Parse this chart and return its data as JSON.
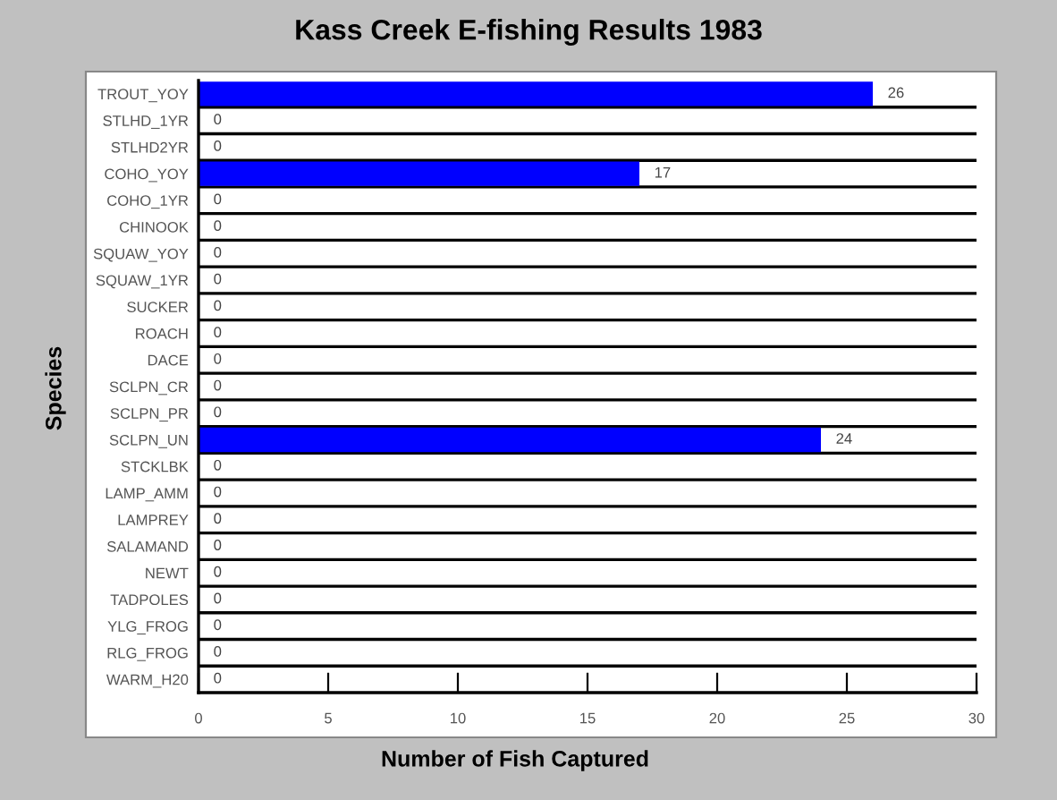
{
  "chart_data": {
    "type": "bar",
    "orientation": "horizontal",
    "title": "Kass Creek E-fishing Results 1983",
    "xlabel": "Number of Fish Captured",
    "ylabel": "Species",
    "categories": [
      "TROUT_YOY",
      "STLHD_1YR",
      "STLHD2YR",
      "COHO_YOY",
      "COHO_1YR",
      "CHINOOK",
      "SQUAW_YOY",
      "SQUAW_1YR",
      "SUCKER",
      "ROACH",
      "DACE",
      "SCLPN_CR",
      "SCLPN_PR",
      "SCLPN_UN",
      "STCKLBK",
      "LAMP_AMM",
      "LAMPREY",
      "SALAMAND",
      "NEWT",
      "TADPOLES",
      "YLG_FROG",
      "RLG_FROG",
      "WARM_H20"
    ],
    "values": [
      26,
      0,
      0,
      17,
      0,
      0,
      0,
      0,
      0,
      0,
      0,
      0,
      0,
      24,
      0,
      0,
      0,
      0,
      0,
      0,
      0,
      0,
      0
    ],
    "color": "#0000ff",
    "xlim": [
      0,
      30
    ],
    "xticks": [
      0,
      5,
      10,
      15,
      20,
      25,
      30
    ],
    "grid": "y",
    "data_labels": true
  }
}
